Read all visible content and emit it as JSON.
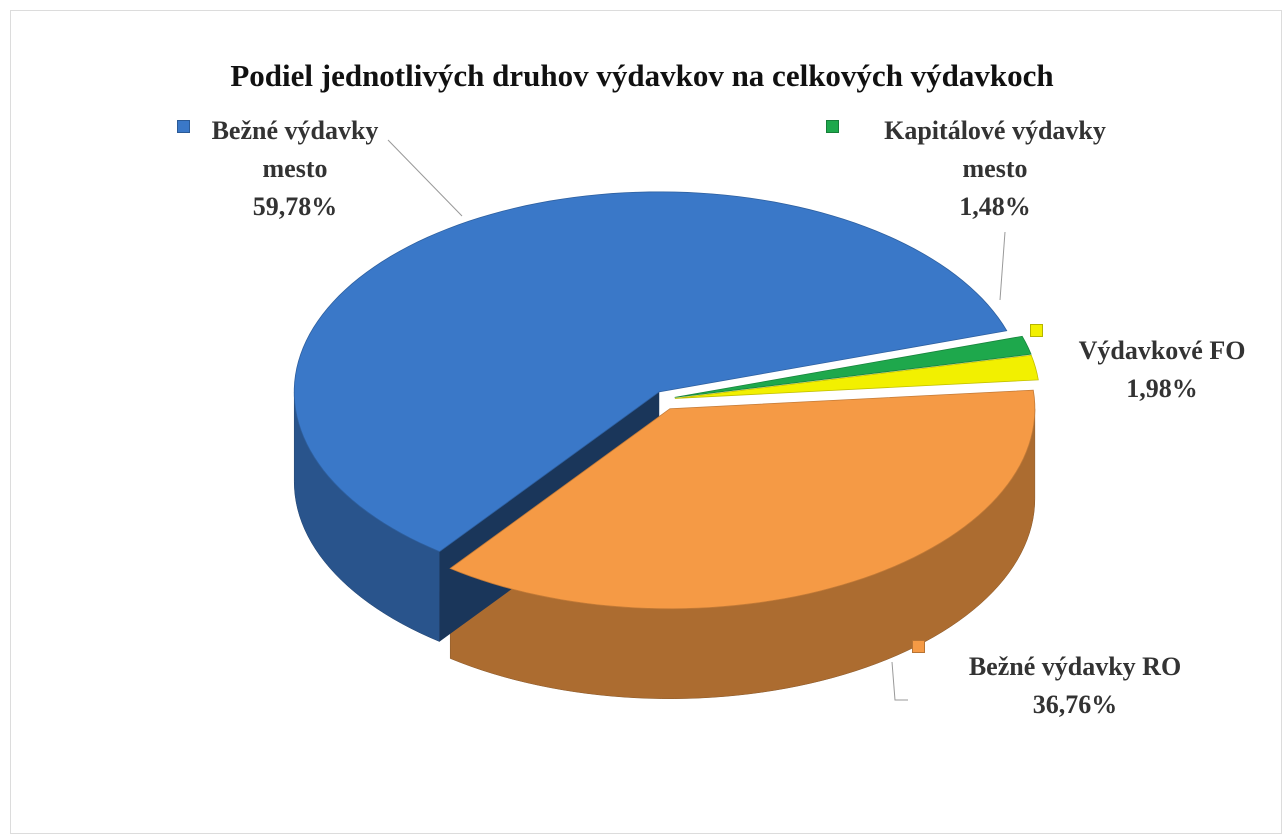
{
  "chart_data": {
    "type": "pie3d",
    "title": "Podiel jednotlivých druhov výdavkov na celkových výdavkoch",
    "categories": [
      "Bežné výdavky mesto",
      "Kapitálové výdavky mesto",
      "Výdavkové FO",
      "Bežné výdavky RO"
    ],
    "values": [
      59.78,
      1.48,
      1.98,
      36.76
    ],
    "value_labels": [
      "59,78%",
      "1,48%",
      "1,98%",
      "36,76%"
    ],
    "colors": [
      "#3a78c8",
      "#1ea84c",
      "#f2f000",
      "#f59a45"
    ]
  }
}
